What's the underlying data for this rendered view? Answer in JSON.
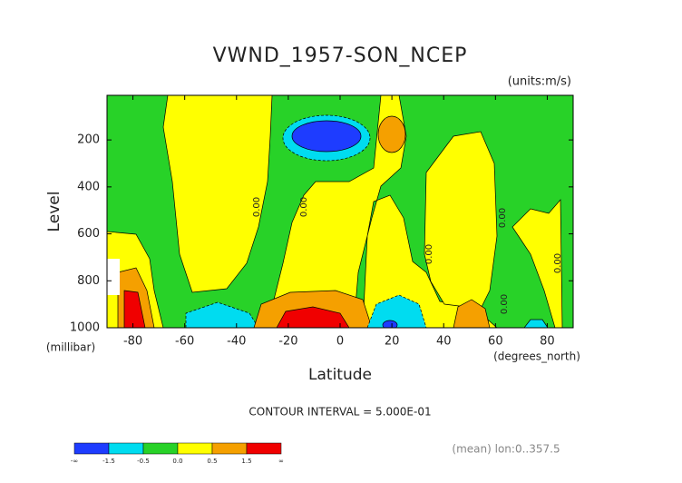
{
  "chart_data": {
    "type": "contour",
    "title": "VWND_1957-SON_NCEP",
    "subtitle": "(units:m/s)",
    "y_label": "Level",
    "y_unit": "(millibar)",
    "x_label": "Latitude",
    "x_unit": "(degrees_north)",
    "xlim": [
      -90,
      90
    ],
    "xticks": [
      -80,
      -60,
      -40,
      -20,
      0,
      20,
      40,
      60,
      80
    ],
    "ylim": [
      1000,
      10
    ],
    "yticks": [
      200,
      400,
      600,
      800,
      1000
    ],
    "contour_labels": [
      "0.00",
      "0.00",
      "0.00",
      "0.00",
      "0.00",
      "0.00"
    ],
    "contour_interval": "CONTOUR INTERVAL = 5.000E-01",
    "footnote": "(mean) lon:0..357.5",
    "colorbar": {
      "labels": [
        "-∞",
        "-1.5",
        "-0.5",
        "0.0",
        "0.5",
        "1.5",
        "∞"
      ],
      "colors": [
        "#1e3cff",
        "#00dcf0",
        "#28d228",
        "#ffff00",
        "#f5a000",
        "#f00000"
      ]
    }
  }
}
